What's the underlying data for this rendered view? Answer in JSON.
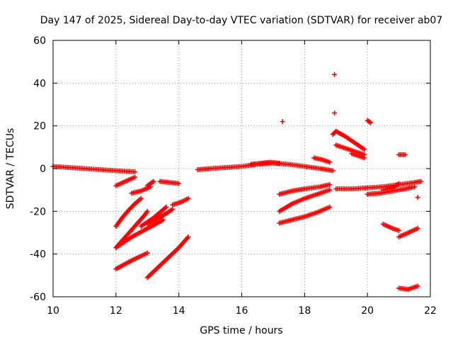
{
  "chart_data": {
    "type": "scatter",
    "title": "Day 147 of 2025, Sidereal Day-to-day VTEC variation (SDTVAR) for receiver ab07",
    "xlabel": "GPS time / hours",
    "ylabel": "SDTVAR / TECUs",
    "xlim": [
      10,
      22
    ],
    "ylim": [
      -60,
      60
    ],
    "xticks": [
      10,
      12,
      14,
      16,
      18,
      20,
      22
    ],
    "yticks": [
      -60,
      -40,
      -20,
      0,
      20,
      40,
      60
    ],
    "grid": true,
    "marker": "plus",
    "series": [
      {
        "name": "s1",
        "color": "#ff0000",
        "x": [
          10.0,
          10.5,
          11.0,
          11.5,
          12.0,
          12.6
        ],
        "y": [
          1.0,
          0.5,
          0.0,
          -0.5,
          -1.0,
          -1.5
        ]
      },
      {
        "name": "s2",
        "color": "#ff0000",
        "x": [
          12.0,
          12.3,
          12.6
        ],
        "y": [
          -8.0,
          -6.0,
          -4.0
        ]
      },
      {
        "name": "s3",
        "color": "#ff0000",
        "x": [
          12.5,
          12.8,
          13.1
        ],
        "y": [
          -11.5,
          -10.5,
          -8.5
        ]
      },
      {
        "name": "s4",
        "color": "#ff0000",
        "x": [
          13.0,
          13.2
        ],
        "y": [
          -8.0,
          -6.0
        ]
      },
      {
        "name": "s5",
        "color": "#ff0000",
        "x": [
          13.4,
          13.7,
          14.0
        ],
        "y": [
          -6.0,
          -6.5,
          -7.0
        ]
      },
      {
        "name": "s6",
        "color": "#ff0000",
        "x": [
          12.0,
          12.2,
          12.4,
          12.6,
          12.8
        ],
        "y": [
          -27.0,
          -23.0,
          -19.5,
          -16.5,
          -14.0
        ]
      },
      {
        "name": "s7",
        "color": "#ff0000",
        "x": [
          12.0,
          12.3,
          12.6,
          12.9,
          13.0
        ],
        "y": [
          -37.0,
          -32.0,
          -27.0,
          -22.0,
          -20.0
        ]
      },
      {
        "name": "s8",
        "color": "#ff0000",
        "x": [
          12.0,
          12.5,
          13.0,
          13.5
        ],
        "y": [
          -37.0,
          -32.0,
          -28.0,
          -24.0
        ]
      },
      {
        "name": "s9",
        "color": "#ff0000",
        "x": [
          12.8,
          13.2,
          13.6
        ],
        "y": [
          -27.0,
          -23.0,
          -18.0
        ]
      },
      {
        "name": "s10",
        "color": "#ff0000",
        "x": [
          13.0,
          13.3,
          13.6,
          13.8
        ],
        "y": [
          -26.0,
          -23.5,
          -21.0,
          -19.0
        ]
      },
      {
        "name": "s11",
        "color": "#ff0000",
        "x": [
          13.8,
          14.1,
          14.3
        ],
        "y": [
          -17.0,
          -15.5,
          -14.0
        ]
      },
      {
        "name": "s12",
        "color": "#ff0000",
        "x": [
          12.0,
          12.5,
          13.0
        ],
        "y": [
          -47.0,
          -43.0,
          -39.5
        ]
      },
      {
        "name": "s13",
        "color": "#ff0000",
        "x": [
          13.0,
          13.5,
          14.0,
          14.3
        ],
        "y": [
          -51.0,
          -44.0,
          -37.0,
          -32.0
        ]
      },
      {
        "name": "s14",
        "color": "#ff0000",
        "x": [
          14.6,
          15.0,
          15.5,
          16.0,
          16.5,
          17.0,
          17.5,
          18.0,
          18.5,
          18.9
        ],
        "y": [
          -0.5,
          0.0,
          0.5,
          1.0,
          2.0,
          2.5,
          2.0,
          1.0,
          0.0,
          -1.0
        ]
      },
      {
        "name": "s15",
        "color": "#ff0000",
        "x": [
          16.3,
          16.6,
          16.9,
          17.2
        ],
        "y": [
          2.0,
          2.5,
          3.0,
          2.5
        ]
      },
      {
        "name": "s16",
        "color": "#ff0000",
        "x": [
          17.3
        ],
        "y": [
          22.0
        ]
      },
      {
        "name": "s17",
        "color": "#ff0000",
        "x": [
          18.3,
          18.6,
          18.8
        ],
        "y": [
          5.0,
          4.0,
          3.0
        ]
      },
      {
        "name": "s18",
        "color": "#ff0000",
        "x": [
          17.2,
          17.6,
          18.0,
          18.5,
          18.8
        ],
        "y": [
          -12.0,
          -10.5,
          -9.5,
          -8.5,
          -7.5
        ]
      },
      {
        "name": "s19",
        "color": "#ff0000",
        "x": [
          17.2,
          17.6,
          18.0,
          18.4,
          18.8
        ],
        "y": [
          -20.0,
          -16.5,
          -14.0,
          -12.0,
          -10.0
        ]
      },
      {
        "name": "s20",
        "color": "#ff0000",
        "x": [
          17.2,
          17.6,
          18.0,
          18.4,
          18.8
        ],
        "y": [
          -25.5,
          -24.0,
          -22.5,
          -20.5,
          -18.0
        ]
      },
      {
        "name": "s21",
        "color": "#ff0000",
        "x": [
          18.95
        ],
        "y": [
          44.0
        ]
      },
      {
        "name": "s22",
        "color": "#ff0000",
        "x": [
          18.95
        ],
        "y": [
          26.0
        ]
      },
      {
        "name": "s23",
        "color": "#ff0000",
        "x": [
          18.9,
          19.0,
          19.3,
          19.6,
          19.9
        ],
        "y": [
          16.0,
          17.5,
          15.0,
          12.0,
          9.0
        ]
      },
      {
        "name": "s24",
        "color": "#ff0000",
        "x": [
          19.0,
          19.3,
          19.6,
          19.9
        ],
        "y": [
          11.0,
          9.5,
          8.0,
          6.5
        ]
      },
      {
        "name": "s25",
        "color": "#ff0000",
        "x": [
          19.5,
          19.7,
          19.9
        ],
        "y": [
          7.0,
          6.0,
          5.0
        ]
      },
      {
        "name": "s26",
        "color": "#ff0000",
        "x": [
          20.0,
          20.1
        ],
        "y": [
          22.5,
          21.5
        ]
      },
      {
        "name": "s27",
        "color": "#ff0000",
        "x": [
          19.0,
          19.5,
          20.0,
          20.5,
          21.0,
          21.5,
          21.7
        ],
        "y": [
          -9.5,
          -9.5,
          -9.0,
          -8.5,
          -7.5,
          -6.5,
          -6.0
        ]
      },
      {
        "name": "s28",
        "color": "#ff0000",
        "x": [
          20.0,
          20.4,
          20.8,
          21.2,
          21.5
        ],
        "y": [
          -12.0,
          -11.5,
          -10.5,
          -9.5,
          -8.5
        ]
      },
      {
        "name": "s29",
        "color": "#ff0000",
        "x": [
          20.5,
          20.8,
          21.0
        ],
        "y": [
          -10.0,
          -9.0,
          -7.0
        ]
      },
      {
        "name": "s30",
        "color": "#ff0000",
        "x": [
          21.0,
          21.2
        ],
        "y": [
          6.5,
          6.5
        ]
      },
      {
        "name": "s31",
        "color": "#ff0000",
        "x": [
          20.5,
          20.8,
          21.0
        ],
        "y": [
          -26.0,
          -28.0,
          -29.0
        ]
      },
      {
        "name": "s32",
        "color": "#ff0000",
        "x": [
          21.0,
          21.3,
          21.6
        ],
        "y": [
          -32.0,
          -30.0,
          -28.0
        ]
      },
      {
        "name": "s33",
        "color": "#ff0000",
        "x": [
          21.0,
          21.3,
          21.6
        ],
        "y": [
          -56.0,
          -56.5,
          -55.0
        ]
      },
      {
        "name": "s34",
        "color": "#ff0000",
        "x": [
          21.6
        ],
        "y": [
          -13.5
        ]
      }
    ]
  }
}
